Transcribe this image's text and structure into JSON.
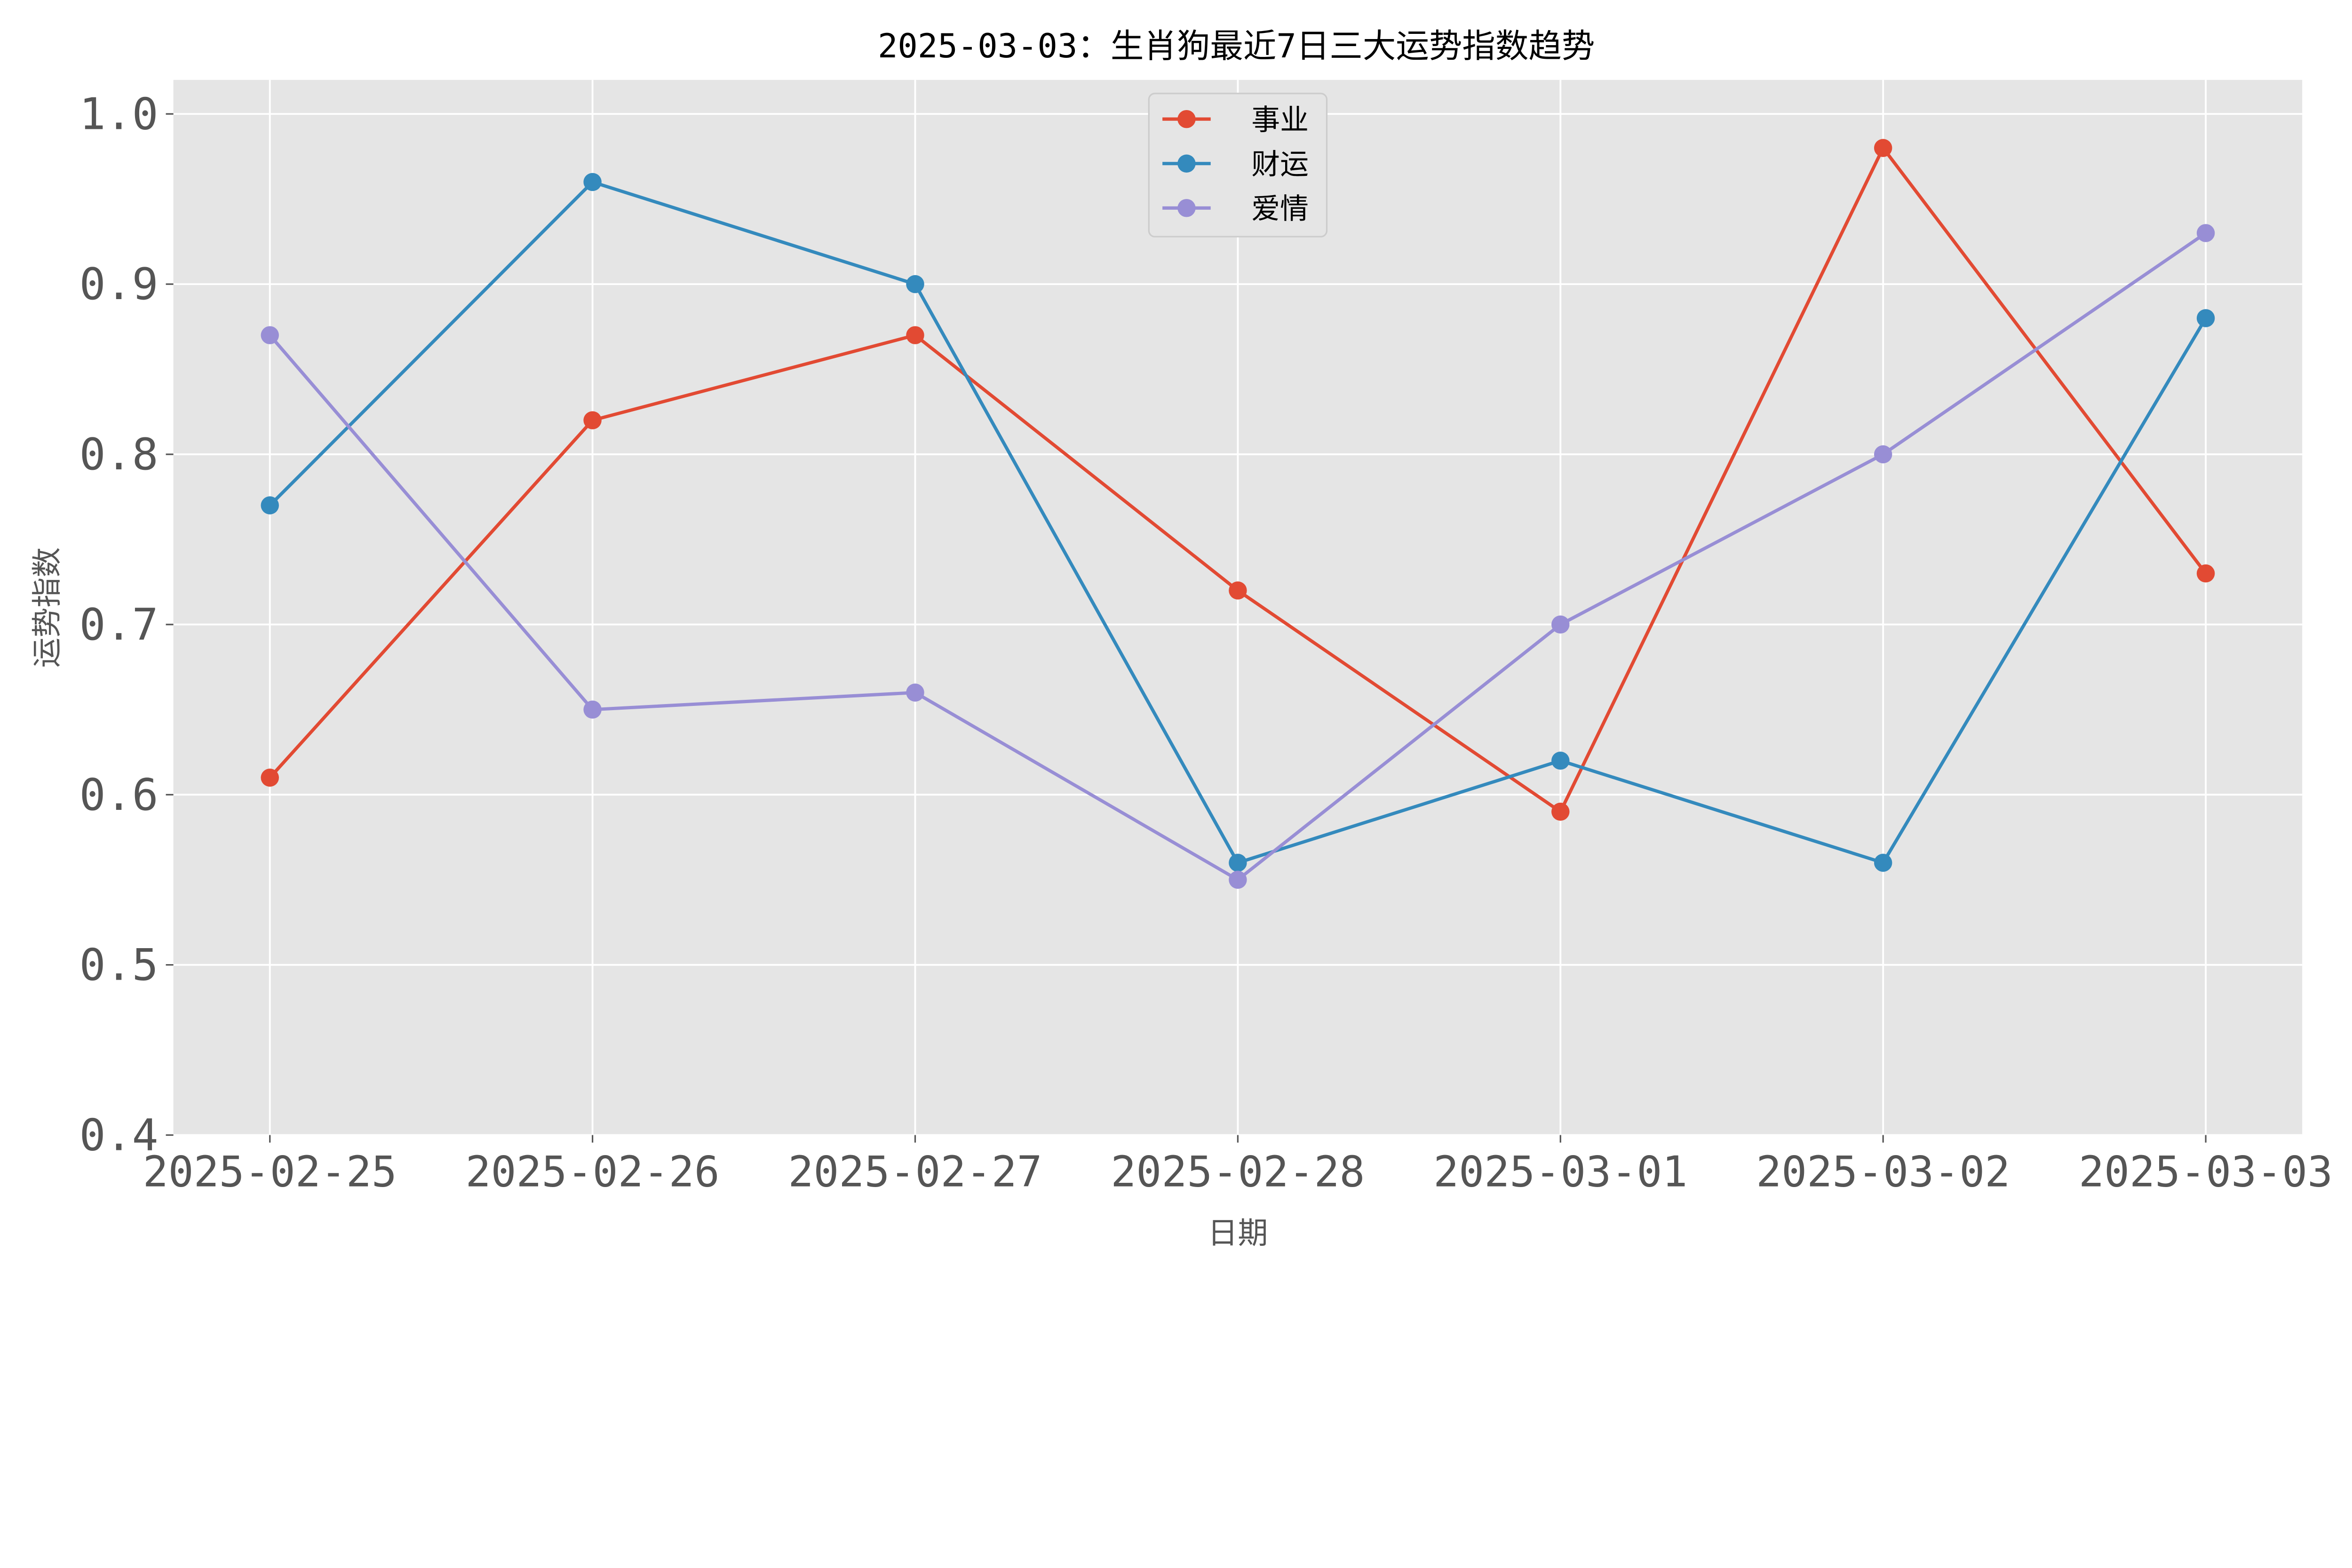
{
  "chart_data": {
    "type": "line",
    "title": "2025-03-03：生肖狗最近7日三大运势指数趋势",
    "xlabel": "日期",
    "ylabel": "运势指数",
    "categories": [
      "2025-02-25",
      "2025-02-26",
      "2025-02-27",
      "2025-02-28",
      "2025-03-01",
      "2025-03-02",
      "2025-03-03"
    ],
    "ylim": [
      0.4,
      1.02
    ],
    "yticks": [
      0.4,
      0.5,
      0.6,
      0.7,
      0.8,
      0.9,
      1.0
    ],
    "ytick_labels": [
      "0.4",
      "0.5",
      "0.6",
      "0.7",
      "0.8",
      "0.9",
      "1.0"
    ],
    "grid": true,
    "legend_position": "top-center",
    "series": [
      {
        "name": "事业",
        "color": "#E24A33",
        "values": [
          0.61,
          0.82,
          0.87,
          0.72,
          0.59,
          0.98,
          0.73
        ]
      },
      {
        "name": "财运",
        "color": "#348ABD",
        "values": [
          0.77,
          0.96,
          0.9,
          0.56,
          0.62,
          0.56,
          0.88
        ]
      },
      {
        "name": "爱情",
        "color": "#988ED5",
        "values": [
          0.87,
          0.65,
          0.66,
          0.55,
          0.7,
          0.8,
          0.93
        ]
      }
    ]
  }
}
